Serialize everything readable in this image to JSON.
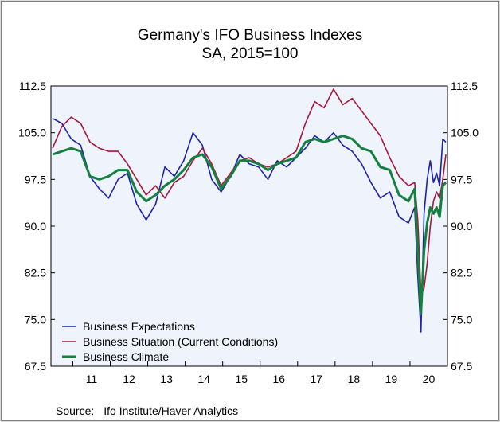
{
  "chart_data": {
    "type": "line",
    "title": "Germany's IFO Business Indexes",
    "subtitle": "SA, 2015=100",
    "source_label": "Source:",
    "source_text": "Ifo Institute/Haver Analytics",
    "xlabel": "",
    "ylabel": "",
    "x_start": "2010-06",
    "x_end": "2020-12",
    "x_ticks": [
      "11",
      "12",
      "13",
      "14",
      "15",
      "16",
      "17",
      "18",
      "19",
      "20"
    ],
    "y_ticks": [
      "67.5",
      "75.0",
      "82.5",
      "90.0",
      "97.5",
      "105.0",
      "112.5"
    ],
    "ylim": [
      67.5,
      112.5
    ],
    "grid": false,
    "legend_position": "bottom-left",
    "series": [
      {
        "name": "Business Expectations",
        "color": "#1f23a8",
        "points": [
          [
            "2010-06",
            107.3
          ],
          [
            "2010-09",
            106.5
          ],
          [
            "2010-12",
            104.0
          ],
          [
            "2011-03",
            103.0
          ],
          [
            "2011-06",
            98.0
          ],
          [
            "2011-09",
            96.0
          ],
          [
            "2011-12",
            94.5
          ],
          [
            "2012-03",
            97.5
          ],
          [
            "2012-06",
            98.5
          ],
          [
            "2012-09",
            93.5
          ],
          [
            "2012-12",
            91.0
          ],
          [
            "2013-03",
            93.5
          ],
          [
            "2013-06",
            99.5
          ],
          [
            "2013-09",
            98.0
          ],
          [
            "2013-12",
            100.5
          ],
          [
            "2014-03",
            105.0
          ],
          [
            "2014-06",
            103.0
          ],
          [
            "2014-09",
            97.5
          ],
          [
            "2014-12",
            95.5
          ],
          [
            "2015-03",
            98.0
          ],
          [
            "2015-06",
            101.5
          ],
          [
            "2015-09",
            100.0
          ],
          [
            "2015-12",
            99.5
          ],
          [
            "2016-03",
            97.5
          ],
          [
            "2016-06",
            100.5
          ],
          [
            "2016-09",
            99.5
          ],
          [
            "2016-12",
            101.0
          ],
          [
            "2017-03",
            102.5
          ],
          [
            "2017-06",
            104.5
          ],
          [
            "2017-09",
            103.5
          ],
          [
            "2017-12",
            105.0
          ],
          [
            "2018-03",
            103.0
          ],
          [
            "2018-06",
            102.0
          ],
          [
            "2018-09",
            100.0
          ],
          [
            "2018-12",
            97.0
          ],
          [
            "2019-03",
            94.5
          ],
          [
            "2019-06",
            95.5
          ],
          [
            "2019-09",
            91.5
          ],
          [
            "2019-12",
            90.5
          ],
          [
            "2020-02",
            93.0
          ],
          [
            "2020-03",
            82.0
          ],
          [
            "2020-04",
            73.0
          ],
          [
            "2020-05",
            92.0
          ],
          [
            "2020-06",
            97.5
          ],
          [
            "2020-07",
            100.5
          ],
          [
            "2020-08",
            97.0
          ],
          [
            "2020-09",
            98.5
          ],
          [
            "2020-10",
            96.5
          ],
          [
            "2020-11",
            104.0
          ],
          [
            "2020-12",
            103.5
          ]
        ]
      },
      {
        "name": "Business Situation (Current Conditions)",
        "color": "#a4193d",
        "points": [
          [
            "2010-06",
            102.5
          ],
          [
            "2010-09",
            106.0
          ],
          [
            "2010-12",
            107.5
          ],
          [
            "2011-03",
            106.5
          ],
          [
            "2011-06",
            103.5
          ],
          [
            "2011-09",
            102.5
          ],
          [
            "2011-12",
            102.0
          ],
          [
            "2012-03",
            102.0
          ],
          [
            "2012-06",
            100.0
          ],
          [
            "2012-09",
            97.5
          ],
          [
            "2012-12",
            95.0
          ],
          [
            "2013-03",
            96.5
          ],
          [
            "2013-06",
            94.5
          ],
          [
            "2013-09",
            97.0
          ],
          [
            "2013-12",
            98.0
          ],
          [
            "2014-03",
            100.5
          ],
          [
            "2014-06",
            102.5
          ],
          [
            "2014-09",
            100.0
          ],
          [
            "2014-12",
            96.5
          ],
          [
            "2015-03",
            98.5
          ],
          [
            "2015-06",
            100.5
          ],
          [
            "2015-09",
            101.0
          ],
          [
            "2015-12",
            100.0
          ],
          [
            "2016-03",
            99.5
          ],
          [
            "2016-06",
            100.0
          ],
          [
            "2016-09",
            101.0
          ],
          [
            "2016-12",
            102.0
          ],
          [
            "2017-03",
            106.5
          ],
          [
            "2017-06",
            110.0
          ],
          [
            "2017-09",
            109.0
          ],
          [
            "2017-12",
            112.0
          ],
          [
            "2018-03",
            109.5
          ],
          [
            "2018-06",
            110.5
          ],
          [
            "2018-09",
            108.5
          ],
          [
            "2018-12",
            106.5
          ],
          [
            "2019-03",
            104.5
          ],
          [
            "2019-06",
            101.0
          ],
          [
            "2019-09",
            98.0
          ],
          [
            "2019-12",
            96.5
          ],
          [
            "2020-02",
            97.0
          ],
          [
            "2020-03",
            91.0
          ],
          [
            "2020-04",
            79.0
          ],
          [
            "2020-05",
            80.0
          ],
          [
            "2020-06",
            84.0
          ],
          [
            "2020-07",
            90.0
          ],
          [
            "2020-08",
            94.0
          ],
          [
            "2020-09",
            95.5
          ],
          [
            "2020-10",
            94.5
          ],
          [
            "2020-11",
            97.5
          ],
          [
            "2020-12",
            101.5
          ]
        ]
      },
      {
        "name": "Business Climate",
        "color": "#15813f",
        "points": [
          [
            "2010-06",
            101.5
          ],
          [
            "2010-09",
            102.0
          ],
          [
            "2010-12",
            102.5
          ],
          [
            "2011-03",
            102.0
          ],
          [
            "2011-06",
            98.0
          ],
          [
            "2011-09",
            97.5
          ],
          [
            "2011-12",
            98.0
          ],
          [
            "2012-03",
            99.0
          ],
          [
            "2012-06",
            99.0
          ],
          [
            "2012-09",
            95.5
          ],
          [
            "2012-12",
            94.0
          ],
          [
            "2013-03",
            95.0
          ],
          [
            "2013-06",
            96.5
          ],
          [
            "2013-09",
            97.5
          ],
          [
            "2013-12",
            99.0
          ],
          [
            "2014-03",
            101.0
          ],
          [
            "2014-06",
            101.5
          ],
          [
            "2014-09",
            99.5
          ],
          [
            "2014-12",
            96.0
          ],
          [
            "2015-03",
            98.0
          ],
          [
            "2015-06",
            100.5
          ],
          [
            "2015-09",
            100.5
          ],
          [
            "2015-12",
            100.0
          ],
          [
            "2016-03",
            99.0
          ],
          [
            "2016-06",
            100.0
          ],
          [
            "2016-09",
            100.5
          ],
          [
            "2016-12",
            101.0
          ],
          [
            "2017-03",
            103.5
          ],
          [
            "2017-06",
            104.0
          ],
          [
            "2017-09",
            103.5
          ],
          [
            "2017-12",
            104.0
          ],
          [
            "2018-03",
            104.5
          ],
          [
            "2018-06",
            104.0
          ],
          [
            "2018-09",
            102.5
          ],
          [
            "2018-12",
            102.0
          ],
          [
            "2019-03",
            99.5
          ],
          [
            "2019-06",
            99.0
          ],
          [
            "2019-09",
            95.0
          ],
          [
            "2019-12",
            94.0
          ],
          [
            "2020-02",
            96.0
          ],
          [
            "2020-03",
            86.0
          ],
          [
            "2020-04",
            76.0
          ],
          [
            "2020-05",
            86.0
          ],
          [
            "2020-06",
            90.5
          ],
          [
            "2020-07",
            93.0
          ],
          [
            "2020-08",
            92.0
          ],
          [
            "2020-09",
            93.0
          ],
          [
            "2020-10",
            91.5
          ],
          [
            "2020-11",
            96.5
          ],
          [
            "2020-12",
            97.0
          ]
        ]
      }
    ]
  }
}
